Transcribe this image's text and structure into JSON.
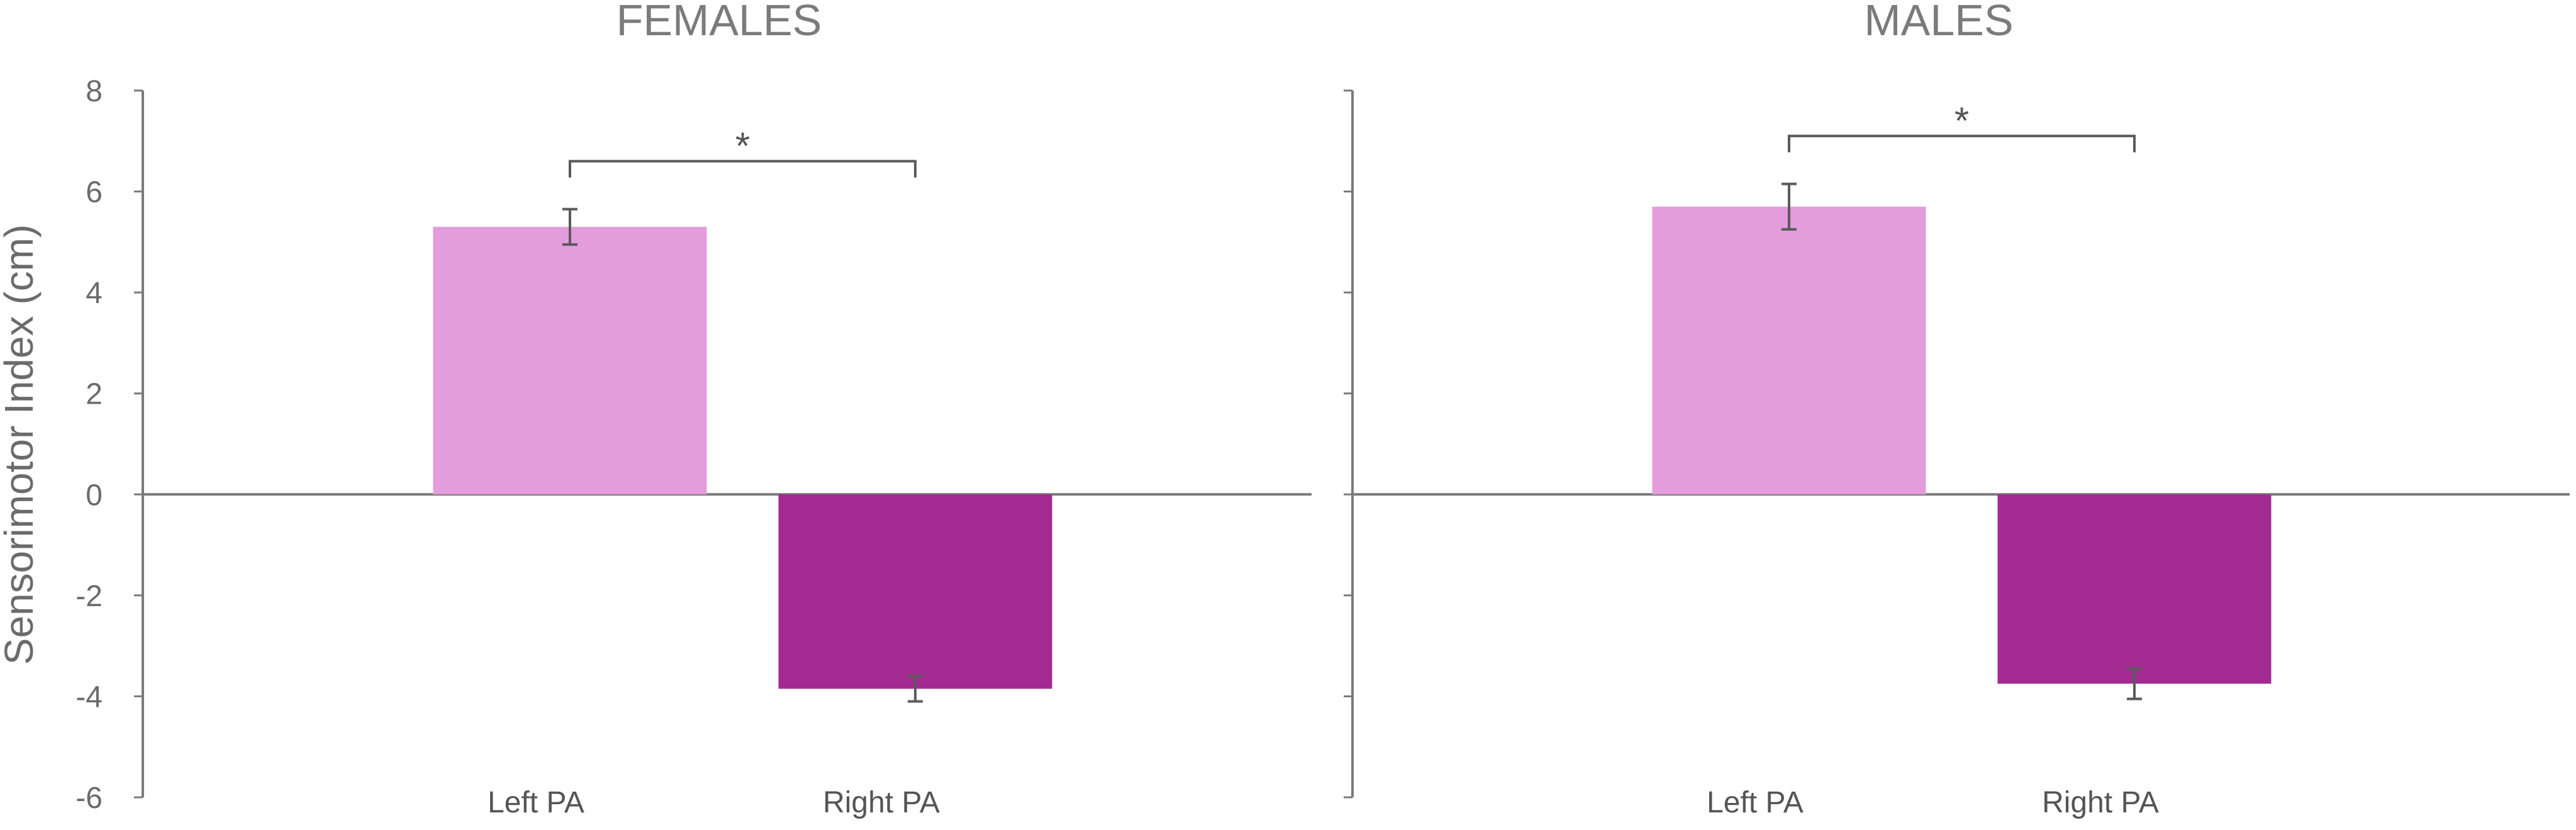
{
  "ylabel": "Sensorimotor  Index (cm)",
  "chart_data": [
    {
      "type": "bar",
      "title": "FEMALES",
      "categories": [
        "Left PA",
        "Right PA"
      ],
      "values": [
        5.3,
        -3.85
      ],
      "errors": [
        0.35,
        0.25
      ],
      "bar_colors": [
        "#E39CDC",
        "#A22A91"
      ],
      "ylabel": "Sensorimotor  Index (cm)",
      "ylim": [
        -6,
        8
      ],
      "yticks": [
        "8",
        "6",
        "4",
        "2",
        "0",
        "-2",
        "-4",
        "-6"
      ],
      "significance": {
        "between": [
          "Left PA",
          "Right PA"
        ],
        "label": "*",
        "y": 6.6
      },
      "grid": false,
      "legend": "none"
    },
    {
      "type": "bar",
      "title": "MALES",
      "categories": [
        "Left PA",
        "Right PA"
      ],
      "values": [
        5.7,
        -3.75
      ],
      "errors": [
        0.45,
        0.3
      ],
      "bar_colors": [
        "#E39CDC",
        "#A22A91"
      ],
      "ylim": [
        -6,
        8
      ],
      "significance": {
        "between": [
          "Left PA",
          "Right PA"
        ],
        "label": "*",
        "y": 7.1
      },
      "grid": false,
      "legend": "none"
    }
  ]
}
